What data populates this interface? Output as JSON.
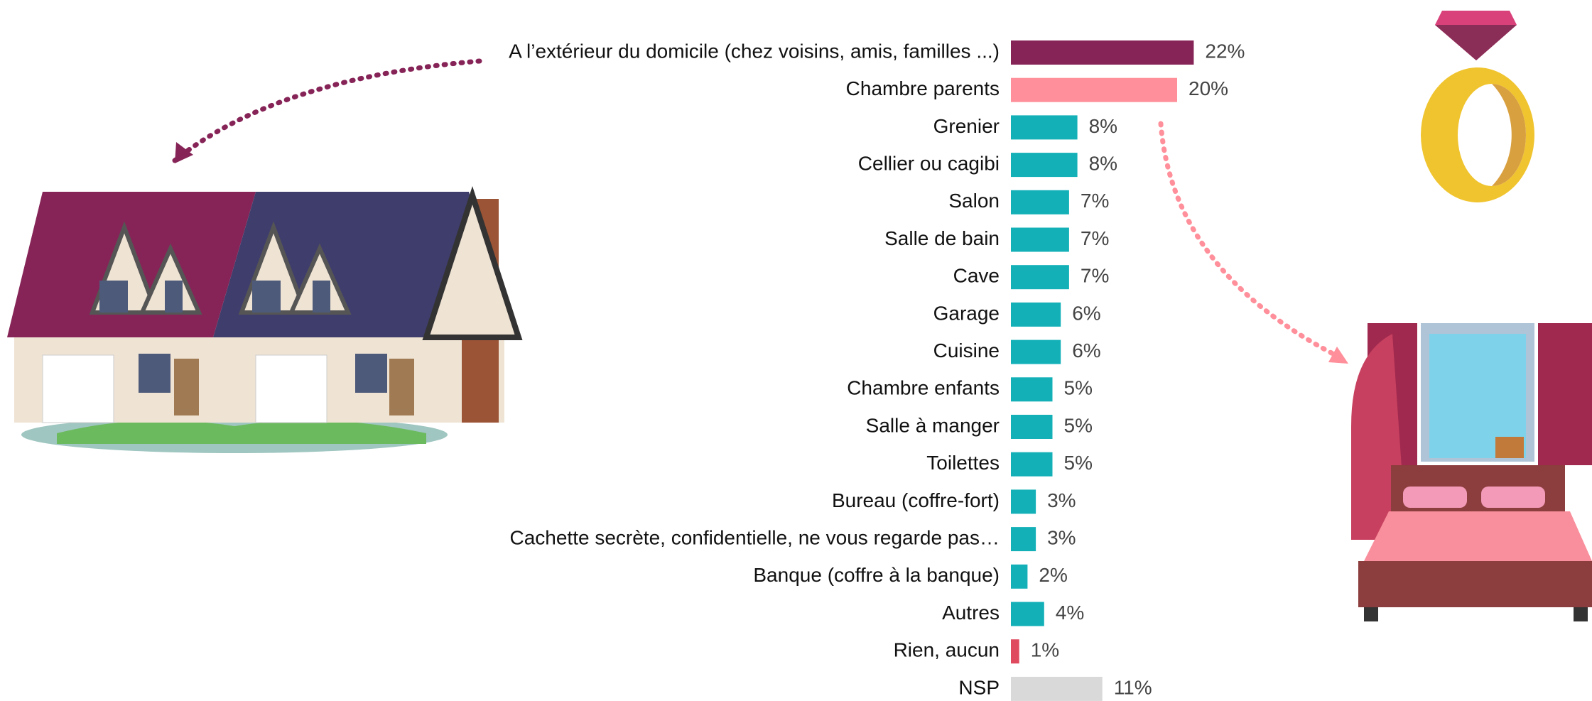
{
  "chart_data": {
    "type": "bar",
    "orientation": "horizontal",
    "categories": [
      "A l’extérieur du domicile (chez voisins, amis, familles ...)",
      "Chambre parents",
      "Grenier",
      "Cellier ou cagibi",
      "Salon",
      "Salle de bain",
      "Cave",
      "Garage",
      "Cuisine",
      "Chambre enfants",
      "Salle à manger",
      "Toilettes",
      "Bureau (coffre-fort)",
      "Cachette secrète, confidentielle, ne vous regarde pas…",
      "Banque (coffre à la banque)",
      "Autres",
      "Rien, aucun",
      "NSP"
    ],
    "values": [
      22,
      20,
      8,
      8,
      7,
      7,
      7,
      6,
      6,
      5,
      5,
      5,
      3,
      3,
      2,
      4,
      1,
      11
    ],
    "value_labels": [
      "22%",
      "20%",
      "8%",
      "8%",
      "7%",
      "7%",
      "7%",
      "6%",
      "6%",
      "5%",
      "5%",
      "5%",
      "3%",
      "3%",
      "2%",
      "4%",
      "1%",
      "11%"
    ],
    "colors": [
      "#862457",
      "#ff8f9a",
      "#13b0b8",
      "#13b0b8",
      "#13b0b8",
      "#13b0b8",
      "#13b0b8",
      "#13b0b8",
      "#13b0b8",
      "#13b0b8",
      "#13b0b8",
      "#13b0b8",
      "#13b0b8",
      "#13b0b8",
      "#13b0b8",
      "#13b0b8",
      "#e04a5f",
      "#d9d9d9"
    ]
  }
}
